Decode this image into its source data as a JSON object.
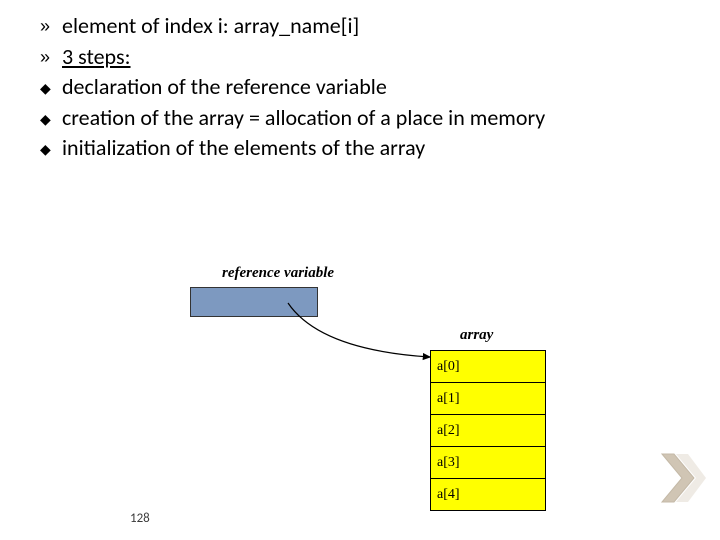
{
  "bullets": {
    "items": [
      {
        "marker": "»",
        "marker_type": "guillemet",
        "text_prefix": "element of index i:   ",
        "text_emph": "",
        "text_suffix": "array_name[i]",
        "underline": false
      },
      {
        "marker": "»",
        "marker_type": "guillemet",
        "text_prefix": "",
        "text_emph": "3 steps:",
        "text_suffix": "",
        "underline": true
      },
      {
        "marker": "◆",
        "marker_type": "diamond",
        "text_prefix": "declaration of the reference variable",
        "text_emph": "",
        "text_suffix": "",
        "underline": false
      },
      {
        "marker": "◆",
        "marker_type": "diamond",
        "text_prefix": "creation of the array = allocation of a place in memory",
        "text_emph": "",
        "text_suffix": "",
        "underline": false
      },
      {
        "marker": "◆",
        "marker_type": "diamond",
        "text_prefix": "initialization of the elements of the array",
        "text_emph": "",
        "text_suffix": "",
        "underline": false
      }
    ]
  },
  "diagram": {
    "ref_label": "reference variable",
    "ref_box_fill": "#7d99c0",
    "array_label": "array",
    "cells": [
      "a[0]",
      "a[1]",
      "a[2]",
      "a[3]",
      "a[4]"
    ],
    "cell_fill": "#ffff00",
    "cell_border": "#000000",
    "arrow_color": "#000000"
  },
  "page_number": "128",
  "decor": {
    "chevron_fill": "#d0c5b4",
    "chevron_stroke": "#c4b9a7"
  }
}
